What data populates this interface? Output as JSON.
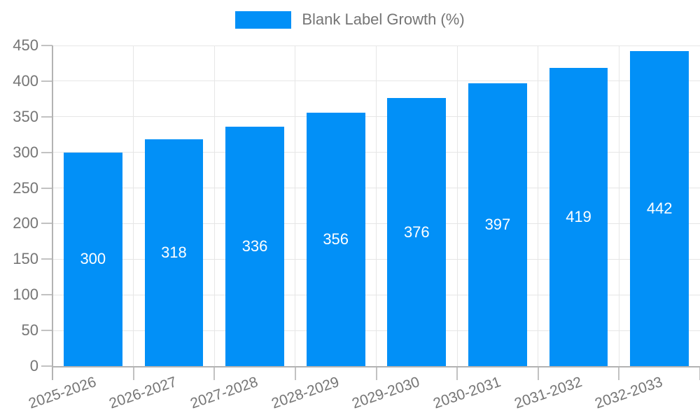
{
  "chart_data": {
    "type": "bar",
    "title": "",
    "legend": "Blank Label Growth (%)",
    "legend_position": "top",
    "categories": [
      "2025-2026",
      "2026-2027",
      "2027-2028",
      "2028-2029",
      "2029-2030",
      "2030-2031",
      "2031-2032",
      "2032-2033"
    ],
    "values": [
      300,
      318,
      336,
      356,
      376,
      397,
      419,
      442
    ],
    "xlabel": "",
    "ylabel": "",
    "ylim": [
      0,
      450
    ],
    "ytick_step": 50,
    "grid": "on",
    "bar_color": "#0290F7",
    "bar_value_label_color": "#ffffff",
    "axis_text_color": "#757575"
  }
}
